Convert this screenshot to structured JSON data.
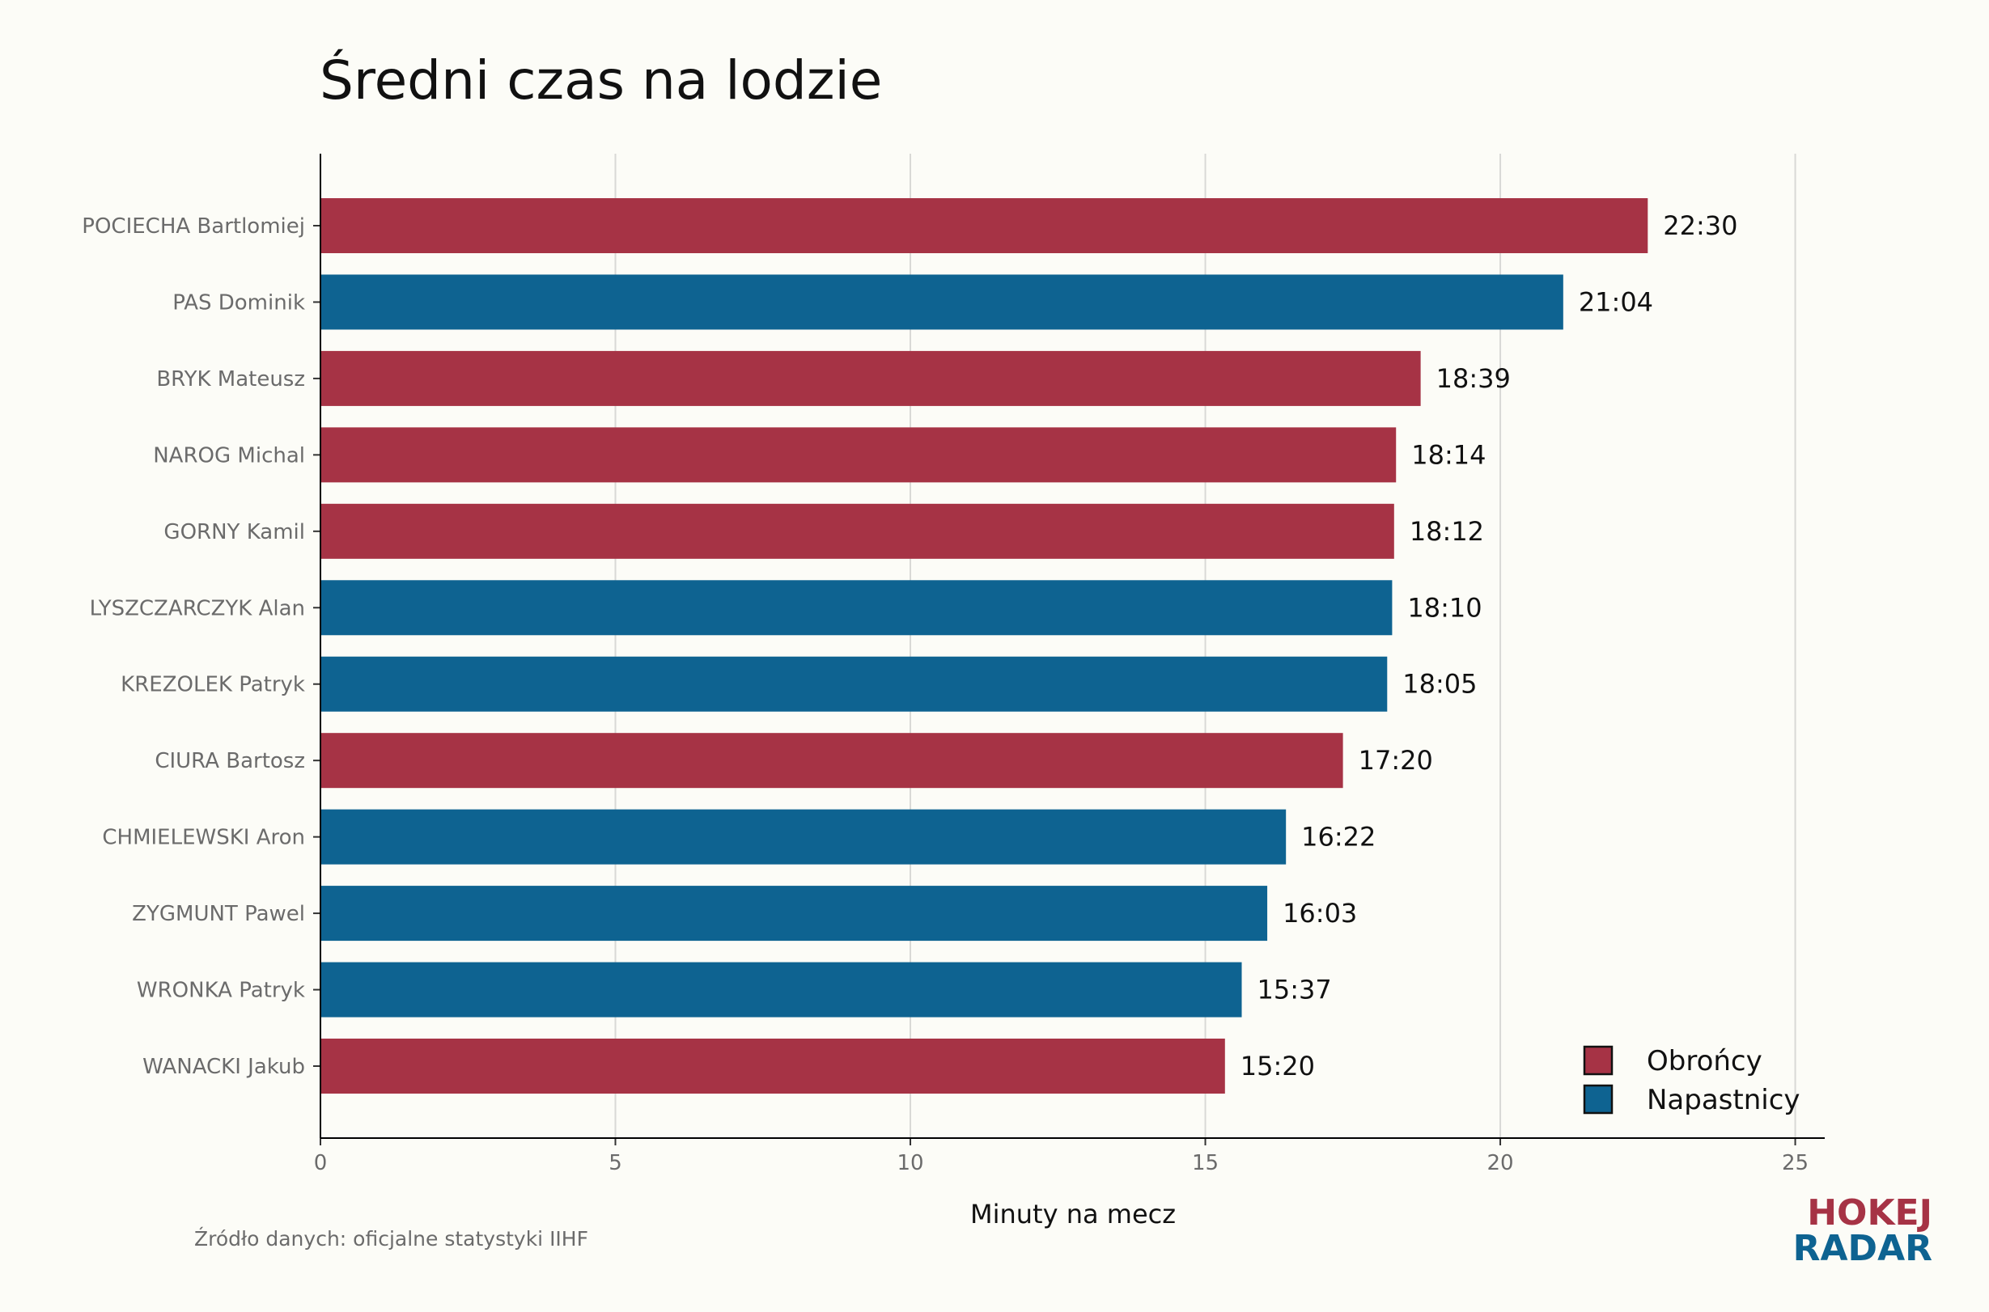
{
  "chart_data": {
    "type": "bar",
    "orientation": "horizontal",
    "title": "Średni czas na lodzie",
    "xlabel": "Minuty na mecz",
    "ylabel": "",
    "xlim": [
      0,
      25.5
    ],
    "xticks": [
      0,
      5,
      10,
      15,
      20,
      25
    ],
    "grid": "vertical",
    "legend_position": "bottom-right",
    "categories": [
      "POCIECHA Bartlomiej",
      "PAS Dominik",
      "BRYK Mateusz",
      "NAROG Michal",
      "GORNY Kamil",
      "LYSZCZARCZYK Alan",
      "KREZOLEK Patryk",
      "CIURA Bartosz",
      "CHMIELEWSKI Aron",
      "ZYGMUNT Pawel",
      "WRONKA Patryk",
      "WANACKI Jakub"
    ],
    "values": [
      22.5,
      21.067,
      18.65,
      18.233,
      18.2,
      18.167,
      18.083,
      17.333,
      16.367,
      16.05,
      15.617,
      15.333
    ],
    "value_labels": [
      "22:30",
      "21:04",
      "18:39",
      "18:14",
      "18:12",
      "18:10",
      "18:05",
      "17:20",
      "16:22",
      "16:03",
      "15:37",
      "15:20"
    ],
    "groups": [
      "Obrońcy",
      "Napastnicy",
      "Obrońcy",
      "Obrońcy",
      "Obrońcy",
      "Napastnicy",
      "Napastnicy",
      "Obrońcy",
      "Napastnicy",
      "Napastnicy",
      "Napastnicy",
      "Obrońcy"
    ],
    "legend": [
      {
        "name": "Obrońcy",
        "color": "#a63345"
      },
      {
        "name": "Napastnicy",
        "color": "#0e6391"
      }
    ]
  },
  "source": "Źródło danych: oficjalne statystyki IIHF",
  "logo": {
    "line1": "HOKEJ",
    "line2": "RADAR",
    "color1": "#a63345",
    "color2": "#0e6391"
  },
  "colors": {
    "background": "#fcfcf7",
    "defence": "#a63345",
    "forward": "#0e6391"
  }
}
